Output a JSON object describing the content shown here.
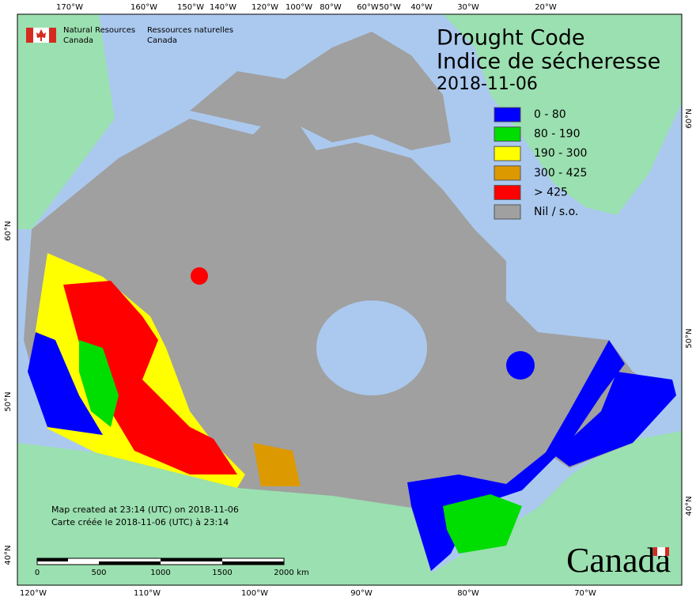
{
  "header": {
    "agency_en": [
      "Natural Resources",
      "Canada"
    ],
    "agency_fr": [
      "Ressources naturelles",
      "Canada"
    ]
  },
  "title": {
    "en": "Drought Code",
    "fr": "Indice de sécheresse",
    "date": "2018-11-06"
  },
  "legend": [
    {
      "label": "0 - 80",
      "color": "#0000ff"
    },
    {
      "label": "80 - 190",
      "color": "#00dd00"
    },
    {
      "label": "190 - 300",
      "color": "#ffff00"
    },
    {
      "label": "300 - 425",
      "color": "#dd9900"
    },
    {
      "label": "> 425",
      "color": "#ff0000"
    },
    {
      "label": "Nil / s.o.",
      "color": "#a0a0a0"
    }
  ],
  "graticule": {
    "top": [
      "170°W",
      "160°W",
      "150°W",
      "140°W",
      "120°W",
      "100°W",
      "80°W",
      "60°W",
      "50°W",
      "40°W",
      "30°W",
      "20°W"
    ],
    "bottom": [
      "120°W",
      "110°W",
      "100°W",
      "90°W",
      "80°W",
      "70°W"
    ],
    "left": [
      "60°N",
      "50°N",
      "40°N"
    ],
    "right": [
      "60°N",
      "50°N",
      "40°N"
    ]
  },
  "notes": [
    "Map created at 23:14 (UTC) on 2018-11-06",
    "Carte créée le 2018-11-06 (UTC) à 23:14"
  ],
  "scale_bar": {
    "labels": [
      "0",
      "500",
      "1000",
      "1500",
      "2000"
    ],
    "unit": "km"
  },
  "wordmark": "Canada"
}
